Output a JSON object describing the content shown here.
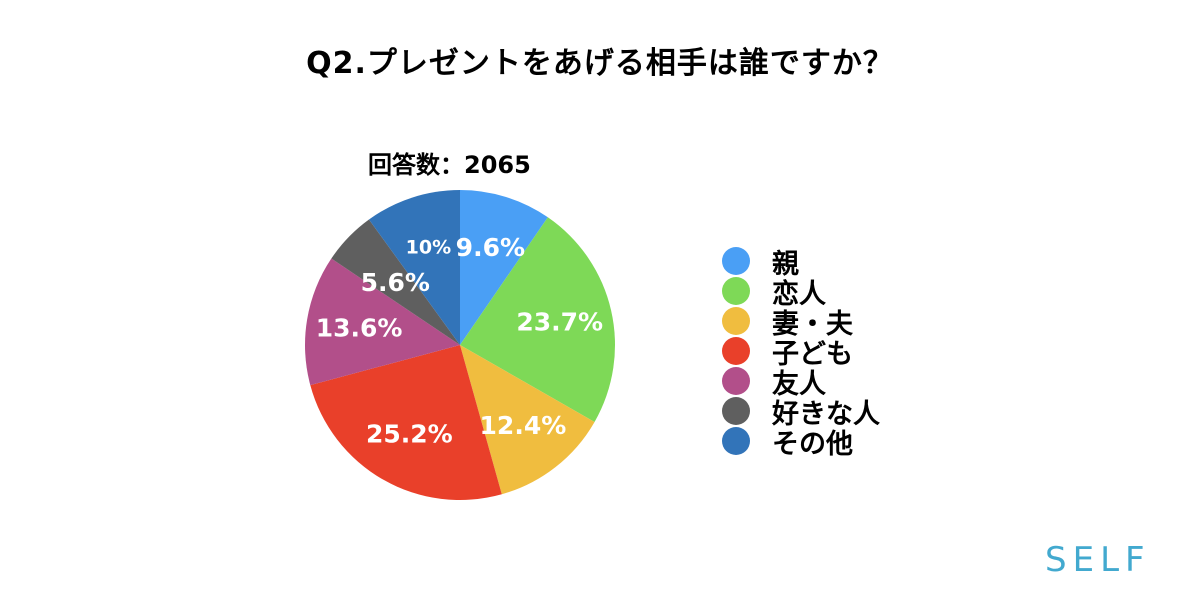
{
  "header": {
    "title": "Q2.プレゼントをあげる相手は誰ですか？",
    "subtitle": "回答数：2065"
  },
  "chart_data": {
    "type": "pie",
    "title": "Q2.プレゼントをあげる相手は誰ですか？",
    "subtitle": "回答数：2065",
    "legend_position": "right",
    "slices": [
      {
        "label": "親",
        "value": 9.6,
        "value_label": "9.6%",
        "color": "#4a9ff5"
      },
      {
        "label": "恋人",
        "value": 23.7,
        "value_label": "23.7%",
        "color": "#7ed957"
      },
      {
        "label": "妻・夫",
        "value": 12.4,
        "value_label": "12.4%",
        "color": "#f0bd3f"
      },
      {
        "label": "子ども",
        "value": 25.2,
        "value_label": "25.2%",
        "color": "#e9402a"
      },
      {
        "label": "友人",
        "value": 13.6,
        "value_label": "13.6%",
        "color": "#b24f8a"
      },
      {
        "label": "好きな人",
        "value": 5.6,
        "value_label": "5.6%",
        "color": "#5f5f5f"
      },
      {
        "label": "その他",
        "value": 10,
        "value_label": "10%",
        "color": "#3274b9"
      }
    ]
  },
  "brand": {
    "logo_text": "SELF",
    "logo_color": "#42a9cf"
  }
}
